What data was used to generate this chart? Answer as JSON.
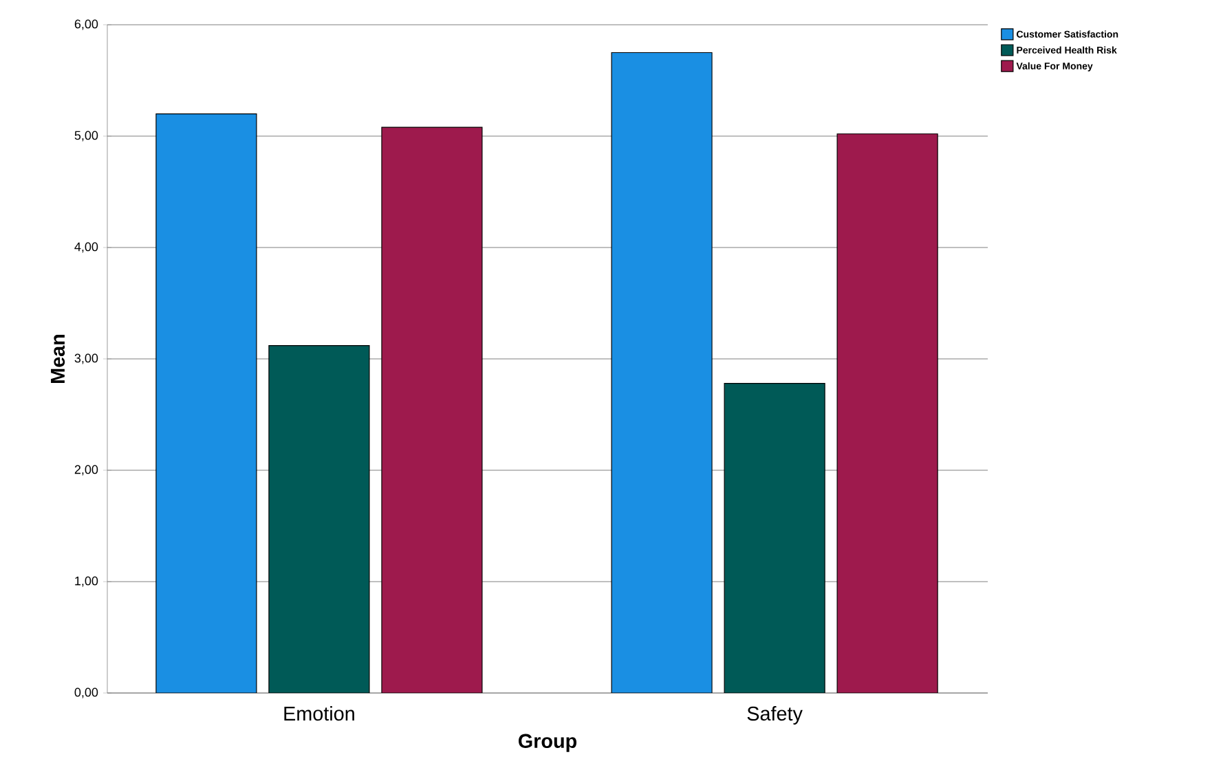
{
  "chart_data": {
    "type": "bar",
    "xlabel": "Group",
    "ylabel": "Mean",
    "categories": [
      "Emotion",
      "Safety"
    ],
    "series": [
      {
        "name": "Customer Satisfaction",
        "color": "#1a8fe3",
        "values": [
          5.2,
          5.75
        ]
      },
      {
        "name": "Perceived Health Risk",
        "color": "#005a57",
        "values": [
          3.12,
          2.78
        ]
      },
      {
        "name": "Value For Money",
        "color": "#9e1a4d",
        "values": [
          5.08,
          5.02
        ]
      }
    ],
    "ylim": [
      0,
      6
    ],
    "yticks": [
      {
        "value": 0,
        "label": "0,00"
      },
      {
        "value": 1,
        "label": "1,00"
      },
      {
        "value": 2,
        "label": "2,00"
      },
      {
        "value": 3,
        "label": "3,00"
      },
      {
        "value": 4,
        "label": "4,00"
      },
      {
        "value": 5,
        "label": "5,00"
      },
      {
        "value": 6,
        "label": "6,00"
      }
    ],
    "grid": "y",
    "legend": "top right"
  }
}
